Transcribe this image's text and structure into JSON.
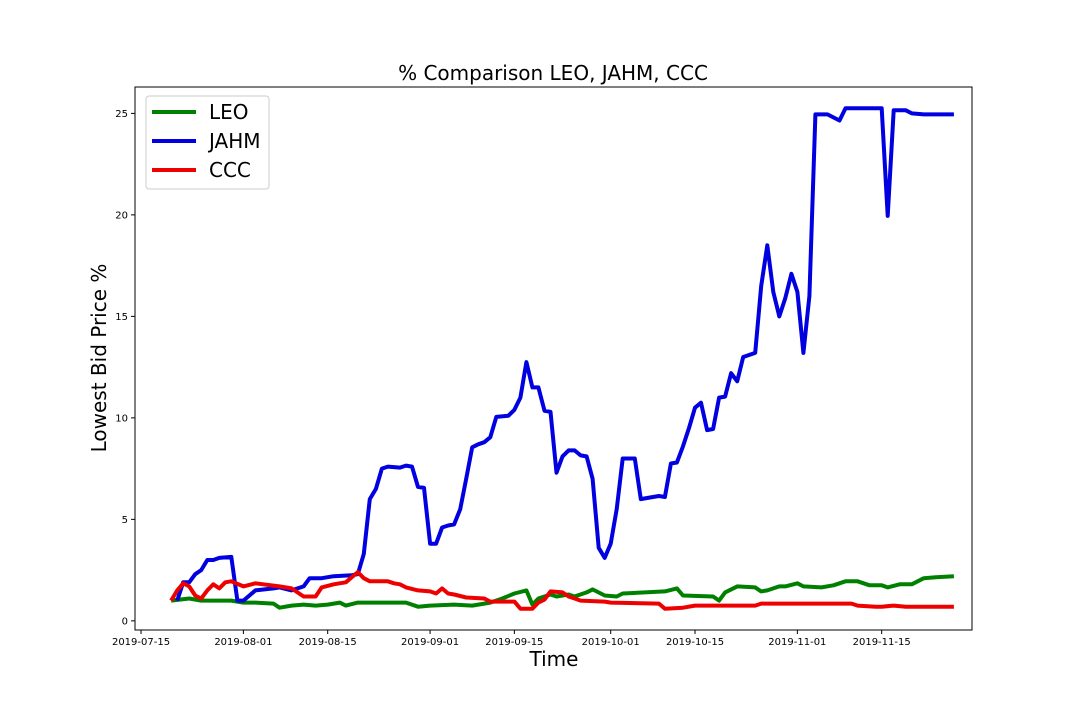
{
  "chart_data": {
    "type": "line",
    "title": "% Comparison LEO, JAHM, CCC",
    "xlabel": "Time",
    "ylabel": "Lowest Bid Price %",
    "x_range": [
      "2019-07-14",
      "2019-11-30"
    ],
    "ylim": [
      -0.45,
      26.3
    ],
    "x_ticks": [
      "2019-07-15",
      "2019-08-01",
      "2019-08-15",
      "2019-09-01",
      "2019-09-15",
      "2019-10-01",
      "2019-10-15",
      "2019-11-01",
      "2019-11-15"
    ],
    "y_ticks": [
      0,
      5,
      10,
      15,
      20,
      25
    ],
    "grid": false,
    "legend_position": "upper-left",
    "series": [
      {
        "name": "LEO",
        "color": "#008000",
        "points": [
          [
            "2019-07-20",
            1.0
          ],
          [
            "2019-07-23",
            1.1
          ],
          [
            "2019-07-25",
            1.0
          ],
          [
            "2019-07-30",
            1.0
          ],
          [
            "2019-08-01",
            0.9
          ],
          [
            "2019-08-03",
            0.9
          ],
          [
            "2019-08-06",
            0.85
          ],
          [
            "2019-08-07",
            0.65
          ],
          [
            "2019-08-09",
            0.75
          ],
          [
            "2019-08-11",
            0.8
          ],
          [
            "2019-08-13",
            0.75
          ],
          [
            "2019-08-15",
            0.8
          ],
          [
            "2019-08-17",
            0.9
          ],
          [
            "2019-08-18",
            0.75
          ],
          [
            "2019-08-20",
            0.9
          ],
          [
            "2019-08-28",
            0.9
          ],
          [
            "2019-08-30",
            0.7
          ],
          [
            "2019-09-01",
            0.75
          ],
          [
            "2019-09-05",
            0.8
          ],
          [
            "2019-09-08",
            0.75
          ],
          [
            "2019-09-11",
            0.9
          ],
          [
            "2019-09-13",
            1.1
          ],
          [
            "2019-09-15",
            1.35
          ],
          [
            "2019-09-17",
            1.5
          ],
          [
            "2019-09-18",
            0.8
          ],
          [
            "2019-09-19",
            1.1
          ],
          [
            "2019-09-21",
            1.3
          ],
          [
            "2019-09-22",
            1.2
          ],
          [
            "2019-09-24",
            1.3
          ],
          [
            "2019-09-25",
            1.2
          ],
          [
            "2019-09-27",
            1.4
          ],
          [
            "2019-09-28",
            1.55
          ],
          [
            "2019-09-30",
            1.25
          ],
          [
            "2019-10-02",
            1.2
          ],
          [
            "2019-10-03",
            1.35
          ],
          [
            "2019-10-10",
            1.45
          ],
          [
            "2019-10-12",
            1.6
          ],
          [
            "2019-10-13",
            1.25
          ],
          [
            "2019-10-18",
            1.2
          ],
          [
            "2019-10-19",
            1.0
          ],
          [
            "2019-10-20",
            1.4
          ],
          [
            "2019-10-22",
            1.7
          ],
          [
            "2019-10-25",
            1.65
          ],
          [
            "2019-10-26",
            1.45
          ],
          [
            "2019-10-27",
            1.5
          ],
          [
            "2019-10-29",
            1.7
          ],
          [
            "2019-10-30",
            1.7
          ],
          [
            "2019-11-01",
            1.85
          ],
          [
            "2019-11-02",
            1.7
          ],
          [
            "2019-11-05",
            1.65
          ],
          [
            "2019-11-07",
            1.75
          ],
          [
            "2019-11-09",
            1.95
          ],
          [
            "2019-11-11",
            1.95
          ],
          [
            "2019-11-13",
            1.75
          ],
          [
            "2019-11-15",
            1.75
          ],
          [
            "2019-11-16",
            1.65
          ],
          [
            "2019-11-18",
            1.8
          ],
          [
            "2019-11-20",
            1.8
          ],
          [
            "2019-11-22",
            2.1
          ],
          [
            "2019-11-24",
            2.15
          ],
          [
            "2019-11-27",
            2.2
          ]
        ]
      },
      {
        "name": "JAHM",
        "color": "#0000e0",
        "points": [
          [
            "2019-07-21",
            1.0
          ],
          [
            "2019-07-22",
            1.9
          ],
          [
            "2019-07-23",
            1.9
          ],
          [
            "2019-07-24",
            2.3
          ],
          [
            "2019-07-25",
            2.5
          ],
          [
            "2019-07-26",
            3.0
          ],
          [
            "2019-07-27",
            3.0
          ],
          [
            "2019-07-28",
            3.1
          ],
          [
            "2019-07-30",
            3.15
          ],
          [
            "2019-07-31",
            1.0
          ],
          [
            "2019-08-01",
            1.0
          ],
          [
            "2019-08-03",
            1.5
          ],
          [
            "2019-08-06",
            1.6
          ],
          [
            "2019-08-07",
            1.65
          ],
          [
            "2019-08-09",
            1.5
          ],
          [
            "2019-08-10",
            1.6
          ],
          [
            "2019-08-11",
            1.7
          ],
          [
            "2019-08-12",
            2.1
          ],
          [
            "2019-08-14",
            2.1
          ],
          [
            "2019-08-16",
            2.2
          ],
          [
            "2019-08-19",
            2.25
          ],
          [
            "2019-08-20",
            2.3
          ],
          [
            "2019-08-21",
            3.3
          ],
          [
            "2019-08-22",
            6.0
          ],
          [
            "2019-08-23",
            6.5
          ],
          [
            "2019-08-24",
            7.5
          ],
          [
            "2019-08-25",
            7.6
          ],
          [
            "2019-08-27",
            7.55
          ],
          [
            "2019-08-28",
            7.65
          ],
          [
            "2019-08-29",
            7.6
          ],
          [
            "2019-08-30",
            6.6
          ],
          [
            "2019-08-31",
            6.55
          ],
          [
            "2019-09-01",
            3.8
          ],
          [
            "2019-09-02",
            3.8
          ],
          [
            "2019-09-03",
            4.6
          ],
          [
            "2019-09-04",
            4.7
          ],
          [
            "2019-09-05",
            4.75
          ],
          [
            "2019-09-06",
            5.5
          ],
          [
            "2019-09-07",
            7.0
          ],
          [
            "2019-09-08",
            8.55
          ],
          [
            "2019-09-09",
            8.7
          ],
          [
            "2019-09-10",
            8.8
          ],
          [
            "2019-09-11",
            9.05
          ],
          [
            "2019-09-12",
            10.05
          ],
          [
            "2019-09-14",
            10.1
          ],
          [
            "2019-09-15",
            10.4
          ],
          [
            "2019-09-16",
            11.0
          ],
          [
            "2019-09-17",
            12.75
          ],
          [
            "2019-09-18",
            11.5
          ],
          [
            "2019-09-19",
            11.5
          ],
          [
            "2019-09-20",
            10.35
          ],
          [
            "2019-09-21",
            10.3
          ],
          [
            "2019-09-22",
            7.3
          ],
          [
            "2019-09-23",
            8.1
          ],
          [
            "2019-09-24",
            8.4
          ],
          [
            "2019-09-25",
            8.4
          ],
          [
            "2019-09-26",
            8.15
          ],
          [
            "2019-09-27",
            8.1
          ],
          [
            "2019-09-28",
            7.0
          ],
          [
            "2019-09-29",
            3.6
          ],
          [
            "2019-09-30",
            3.1
          ],
          [
            "2019-10-01",
            3.8
          ],
          [
            "2019-10-02",
            5.5
          ],
          [
            "2019-10-03",
            8.0
          ],
          [
            "2019-10-05",
            8.0
          ],
          [
            "2019-10-06",
            6.0
          ],
          [
            "2019-10-08",
            6.1
          ],
          [
            "2019-10-09",
            6.15
          ],
          [
            "2019-10-10",
            6.1
          ],
          [
            "2019-10-11",
            7.75
          ],
          [
            "2019-10-12",
            7.8
          ],
          [
            "2019-10-13",
            8.6
          ],
          [
            "2019-10-14",
            9.5
          ],
          [
            "2019-10-15",
            10.5
          ],
          [
            "2019-10-16",
            10.75
          ],
          [
            "2019-10-17",
            9.4
          ],
          [
            "2019-10-18",
            9.45
          ],
          [
            "2019-10-19",
            11.0
          ],
          [
            "2019-10-20",
            11.05
          ],
          [
            "2019-10-21",
            12.2
          ],
          [
            "2019-10-22",
            11.8
          ],
          [
            "2019-10-23",
            13.0
          ],
          [
            "2019-10-25",
            13.2
          ],
          [
            "2019-10-26",
            16.5
          ],
          [
            "2019-10-27",
            18.5
          ],
          [
            "2019-10-28",
            16.2
          ],
          [
            "2019-10-29",
            15.0
          ],
          [
            "2019-10-30",
            15.9
          ],
          [
            "2019-10-31",
            17.1
          ],
          [
            "2019-11-01",
            16.2
          ],
          [
            "2019-11-02",
            13.2
          ],
          [
            "2019-11-03",
            16.0
          ],
          [
            "2019-11-04",
            24.95
          ],
          [
            "2019-11-06",
            24.95
          ],
          [
            "2019-11-08",
            24.65
          ],
          [
            "2019-11-09",
            25.25
          ],
          [
            "2019-11-15",
            25.25
          ],
          [
            "2019-11-16",
            19.95
          ],
          [
            "2019-11-17",
            25.15
          ],
          [
            "2019-11-19",
            25.15
          ],
          [
            "2019-11-20",
            25.0
          ],
          [
            "2019-11-22",
            24.95
          ],
          [
            "2019-11-27",
            24.95
          ]
        ]
      },
      {
        "name": "CCC",
        "color": "#ee0000",
        "points": [
          [
            "2019-07-20",
            1.0
          ],
          [
            "2019-07-21",
            1.5
          ],
          [
            "2019-07-22",
            1.85
          ],
          [
            "2019-07-23",
            1.7
          ],
          [
            "2019-07-24",
            1.25
          ],
          [
            "2019-07-25",
            1.1
          ],
          [
            "2019-07-26",
            1.5
          ],
          [
            "2019-07-27",
            1.8
          ],
          [
            "2019-07-28",
            1.6
          ],
          [
            "2019-07-29",
            1.9
          ],
          [
            "2019-07-30",
            1.95
          ],
          [
            "2019-08-01",
            1.7
          ],
          [
            "2019-08-03",
            1.85
          ],
          [
            "2019-08-07",
            1.7
          ],
          [
            "2019-08-09",
            1.6
          ],
          [
            "2019-08-11",
            1.2
          ],
          [
            "2019-08-13",
            1.2
          ],
          [
            "2019-08-14",
            1.65
          ],
          [
            "2019-08-16",
            1.8
          ],
          [
            "2019-08-17",
            1.85
          ],
          [
            "2019-08-18",
            1.9
          ],
          [
            "2019-08-20",
            2.4
          ],
          [
            "2019-08-21",
            2.1
          ],
          [
            "2019-08-22",
            1.95
          ],
          [
            "2019-08-25",
            1.95
          ],
          [
            "2019-08-26",
            1.85
          ],
          [
            "2019-08-27",
            1.8
          ],
          [
            "2019-08-28",
            1.65
          ],
          [
            "2019-08-30",
            1.5
          ],
          [
            "2019-09-01",
            1.45
          ],
          [
            "2019-09-02",
            1.35
          ],
          [
            "2019-09-03",
            1.6
          ],
          [
            "2019-09-04",
            1.35
          ],
          [
            "2019-09-05",
            1.3
          ],
          [
            "2019-09-07",
            1.15
          ],
          [
            "2019-09-10",
            1.1
          ],
          [
            "2019-09-11",
            0.95
          ],
          [
            "2019-09-15",
            0.95
          ],
          [
            "2019-09-16",
            0.6
          ],
          [
            "2019-09-18",
            0.6
          ],
          [
            "2019-09-19",
            0.9
          ],
          [
            "2019-09-20",
            1.05
          ],
          [
            "2019-09-21",
            1.45
          ],
          [
            "2019-09-23",
            1.4
          ],
          [
            "2019-09-24",
            1.2
          ],
          [
            "2019-09-25",
            1.1
          ],
          [
            "2019-09-26",
            1.0
          ],
          [
            "2019-09-30",
            0.95
          ],
          [
            "2019-10-01",
            0.9
          ],
          [
            "2019-10-09",
            0.85
          ],
          [
            "2019-10-10",
            0.6
          ],
          [
            "2019-10-13",
            0.65
          ],
          [
            "2019-10-15",
            0.75
          ],
          [
            "2019-10-25",
            0.75
          ],
          [
            "2019-10-26",
            0.85
          ],
          [
            "2019-11-01",
            0.85
          ],
          [
            "2019-11-10",
            0.85
          ],
          [
            "2019-11-11",
            0.75
          ],
          [
            "2019-11-14",
            0.7
          ],
          [
            "2019-11-15",
            0.7
          ],
          [
            "2019-11-17",
            0.75
          ],
          [
            "2019-11-19",
            0.7
          ],
          [
            "2019-11-27",
            0.7
          ]
        ]
      }
    ]
  }
}
